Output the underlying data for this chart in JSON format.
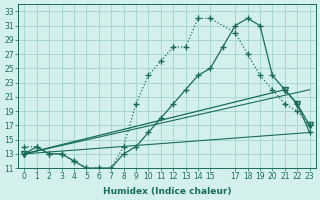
{
  "xlabel": "Humidex (Indice chaleur)",
  "background_color": "#d4f0ec",
  "grid_color": "#a8d8d0",
  "line_color": "#1a6b5a",
  "xlim": [
    -0.5,
    23.5
  ],
  "ylim": [
    11,
    34
  ],
  "yticks": [
    11,
    13,
    15,
    17,
    19,
    21,
    23,
    25,
    27,
    29,
    31,
    33
  ],
  "xticks": [
    0,
    1,
    2,
    3,
    4,
    5,
    6,
    7,
    8,
    9,
    10,
    11,
    12,
    13,
    14,
    15,
    17,
    18,
    19,
    20,
    21,
    22,
    23
  ],
  "line1_x": [
    0,
    1,
    2,
    3,
    4,
    5,
    6,
    7,
    8,
    9,
    10,
    11,
    12,
    13,
    14,
    15,
    17,
    18,
    19,
    20,
    21,
    22,
    23
  ],
  "line1_y": [
    14,
    14,
    13,
    13,
    12,
    11,
    11,
    11,
    14,
    20,
    24,
    26,
    28,
    28,
    32,
    32,
    30,
    27,
    24,
    22,
    20,
    19,
    17
  ],
  "line2_x": [
    0,
    1,
    2,
    3,
    4,
    5,
    6,
    7,
    8,
    9,
    10,
    11,
    12,
    13,
    14,
    15,
    16,
    17,
    18,
    19,
    20,
    21,
    22,
    23
  ],
  "line2_y": [
    13,
    14,
    13,
    13,
    12,
    11,
    11,
    11,
    13,
    14,
    16,
    18,
    20,
    22,
    24,
    25,
    28,
    31,
    32,
    31,
    24,
    22,
    20,
    16
  ],
  "line3_x": [
    0,
    23
  ],
  "line3_y": [
    13,
    22
  ],
  "line4_x": [
    0,
    23
  ],
  "line4_y": [
    13,
    16
  ],
  "line5_x": [
    0,
    21,
    22,
    23
  ],
  "line5_y": [
    13,
    22,
    20,
    17
  ]
}
